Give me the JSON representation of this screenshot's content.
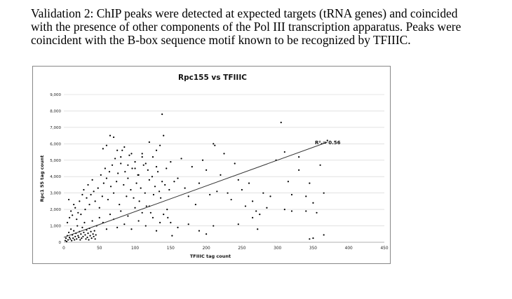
{
  "caption": {
    "line1": "Validation 2:  ChIP peaks were detected at expected targets (tRNA genes) and coincided",
    "line2": "with the presence of other components of the Pol III transcription apparatus.  Peaks were",
    "line3": "coincident with the B-box sequence motif known to be recognized by TFIIIC."
  },
  "chart_data": {
    "type": "scatter",
    "title": "Rpc155 vs TFIIIC",
    "xlabel": "TFIIIC tag count",
    "ylabel": "Rpc1 55 tag count",
    "xlim": [
      0,
      450
    ],
    "ylim": [
      0,
      9000
    ],
    "x_ticks": [
      "0",
      "50",
      "100",
      "150",
      "200",
      "250",
      "300",
      "350",
      "400",
      "450"
    ],
    "y_ticks": [
      "0",
      "1,000",
      "2,000",
      "3,000",
      "4,000",
      "5,000",
      "6,000",
      "7,000",
      "8,000",
      "9,000"
    ],
    "grid": "horizontal",
    "marker_color": "#000000",
    "trendline": {
      "x": [
        0,
        370
      ],
      "y": [
        300,
        6100
      ]
    },
    "annotation": "R² = 0.56",
    "points": [
      [
        2,
        100
      ],
      [
        3,
        250
      ],
      [
        4,
        50
      ],
      [
        5,
        400
      ],
      [
        6,
        150
      ],
      [
        7,
        600
      ],
      [
        8,
        300
      ],
      [
        9,
        200
      ],
      [
        10,
        800
      ],
      [
        11,
        100
      ],
      [
        12,
        450
      ],
      [
        13,
        250
      ],
      [
        14,
        700
      ],
      [
        15,
        150
      ],
      [
        16,
        350
      ],
      [
        17,
        550
      ],
      [
        18,
        200
      ],
      [
        19,
        1000
      ],
      [
        20,
        400
      ],
      [
        21,
        300
      ],
      [
        22,
        650
      ],
      [
        23,
        150
      ],
      [
        24,
        500
      ],
      [
        25,
        250
      ],
      [
        26,
        900
      ],
      [
        27,
        350
      ],
      [
        28,
        600
      ],
      [
        29,
        1200
      ],
      [
        30,
        450
      ],
      [
        31,
        200
      ],
      [
        32,
        750
      ],
      [
        33,
        300
      ],
      [
        34,
        550
      ],
      [
        35,
        150
      ],
      [
        36,
        850
      ],
      [
        37,
        400
      ],
      [
        38,
        650
      ],
      [
        39,
        250
      ],
      [
        40,
        1300
      ],
      [
        41,
        500
      ],
      [
        42,
        350
      ],
      [
        43,
        700
      ],
      [
        44,
        200
      ],
      [
        45,
        450
      ],
      [
        5,
        1200
      ],
      [
        8,
        1500
      ],
      [
        10,
        1900
      ],
      [
        12,
        1650
      ],
      [
        14,
        2300
      ],
      [
        7,
        2600
      ],
      [
        16,
        2100
      ],
      [
        18,
        1400
      ],
      [
        20,
        1800
      ],
      [
        22,
        2500
      ],
      [
        24,
        1700
      ],
      [
        26,
        2900
      ],
      [
        28,
        3200
      ],
      [
        30,
        2000
      ],
      [
        32,
        2700
      ],
      [
        34,
        3500
      ],
      [
        36,
        2300
      ],
      [
        38,
        2900
      ],
      [
        40,
        3800
      ],
      [
        42,
        3100
      ],
      [
        44,
        2500
      ],
      [
        46,
        1000
      ],
      [
        48,
        3300
      ],
      [
        50,
        2100
      ],
      [
        52,
        4100
      ],
      [
        54,
        2800
      ],
      [
        56,
        3600
      ],
      [
        58,
        4500
      ],
      [
        60,
        3900
      ],
      [
        62,
        2600
      ],
      [
        64,
        4300
      ],
      [
        66,
        3400
      ],
      [
        68,
        4700
      ],
      [
        70,
        3000
      ],
      [
        72,
        5100
      ],
      [
        74,
        3700
      ],
      [
        76,
        4200
      ],
      [
        78,
        2300
      ],
      [
        80,
        4800
      ],
      [
        82,
        5600
      ],
      [
        84,
        3500
      ],
      [
        86,
        4300
      ],
      [
        88,
        2800
      ],
      [
        90,
        3900
      ],
      [
        92,
        5300
      ],
      [
        94,
        3200
      ],
      [
        96,
        4500
      ],
      [
        98,
        2700
      ],
      [
        100,
        4900
      ],
      [
        102,
        3600
      ],
      [
        104,
        4100
      ],
      [
        106,
        2500
      ],
      [
        108,
        3300
      ],
      [
        110,
        5200
      ],
      [
        112,
        4700
      ],
      [
        114,
        3000
      ],
      [
        116,
        2200
      ],
      [
        118,
        4400
      ],
      [
        120,
        3800
      ],
      [
        122,
        1800
      ],
      [
        124,
        4000
      ],
      [
        126,
        2900
      ],
      [
        128,
        3400
      ],
      [
        130,
        5600
      ],
      [
        132,
        4300
      ],
      [
        134,
        3100
      ],
      [
        136,
        2700
      ],
      [
        138,
        3700
      ],
      [
        140,
        6500
      ],
      [
        142,
        3500
      ],
      [
        144,
        4500
      ],
      [
        146,
        1500
      ],
      [
        148,
        3200
      ],
      [
        50,
        1500
      ],
      [
        55,
        1200
      ],
      [
        60,
        800
      ],
      [
        65,
        1700
      ],
      [
        70,
        1400
      ],
      [
        75,
        900
      ],
      [
        80,
        1900
      ],
      [
        85,
        1100
      ],
      [
        90,
        1600
      ],
      [
        95,
        800
      ],
      [
        100,
        2100
      ],
      [
        105,
        1300
      ],
      [
        110,
        1800
      ],
      [
        115,
        1000
      ],
      [
        120,
        2200
      ],
      [
        125,
        1500
      ],
      [
        130,
        700
      ],
      [
        135,
        1200
      ],
      [
        140,
        1700
      ],
      [
        145,
        2000
      ],
      [
        55,
        5700
      ],
      [
        60,
        5900
      ],
      [
        65,
        6500
      ],
      [
        70,
        6400
      ],
      [
        75,
        5600
      ],
      [
        80,
        5200
      ],
      [
        85,
        5800
      ],
      [
        90,
        4700
      ],
      [
        95,
        5400
      ],
      [
        100,
        4500
      ],
      [
        105,
        4100
      ],
      [
        110,
        5400
      ],
      [
        115,
        4800
      ],
      [
        120,
        6100
      ],
      [
        125,
        5200
      ],
      [
        130,
        4600
      ],
      [
        135,
        5900
      ],
      [
        138,
        7800
      ],
      [
        150,
        4900
      ],
      [
        155,
        3700
      ],
      [
        160,
        3900
      ],
      [
        165,
        5100
      ],
      [
        170,
        3300
      ],
      [
        175,
        2800
      ],
      [
        180,
        4600
      ],
      [
        185,
        2300
      ],
      [
        190,
        3600
      ],
      [
        195,
        5000
      ],
      [
        200,
        4400
      ],
      [
        205,
        2900
      ],
      [
        210,
        6000
      ],
      [
        212,
        5900
      ],
      [
        215,
        3100
      ],
      [
        220,
        4100
      ],
      [
        225,
        5400
      ],
      [
        230,
        3000
      ],
      [
        235,
        2600
      ],
      [
        240,
        4800
      ],
      [
        245,
        3800
      ],
      [
        250,
        3200
      ],
      [
        255,
        2200
      ],
      [
        260,
        3600
      ],
      [
        265,
        2500
      ],
      [
        270,
        1900
      ],
      [
        275,
        1700
      ],
      [
        280,
        3000
      ],
      [
        285,
        2100
      ],
      [
        290,
        2800
      ],
      [
        150,
        1200
      ],
      [
        152,
        400
      ],
      [
        160,
        900
      ],
      [
        175,
        1100
      ],
      [
        190,
        700
      ],
      [
        200,
        500
      ],
      [
        210,
        1000
      ],
      [
        245,
        1100
      ],
      [
        265,
        1500
      ],
      [
        272,
        800
      ],
      [
        298,
        5000
      ],
      [
        305,
        7300
      ],
      [
        310,
        5500
      ],
      [
        315,
        3700
      ],
      [
        320,
        2900
      ],
      [
        330,
        4400
      ],
      [
        340,
        2800
      ],
      [
        345,
        3600
      ],
      [
        350,
        2400
      ],
      [
        355,
        1800
      ],
      [
        360,
        4700
      ],
      [
        365,
        3000
      ],
      [
        370,
        6200
      ],
      [
        330,
        5200
      ],
      [
        362,
        6000
      ],
      [
        310,
        2000
      ],
      [
        320,
        1900
      ],
      [
        340,
        1900
      ],
      [
        345,
        200
      ],
      [
        350,
        250
      ],
      [
        365,
        450
      ]
    ]
  }
}
